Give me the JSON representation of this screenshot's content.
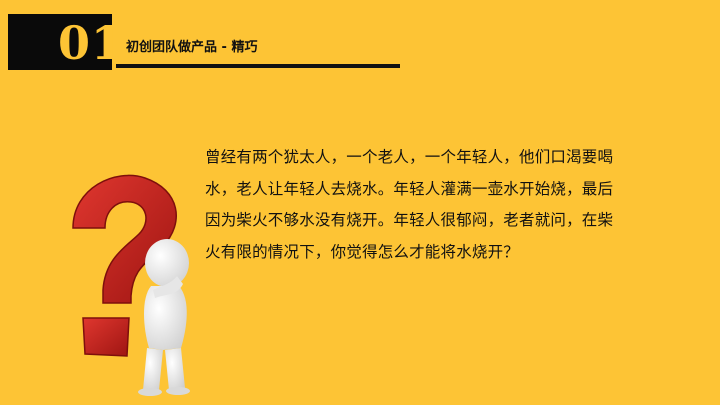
{
  "slide": {
    "section_number": "01",
    "title": "初创团队做产品 - 精巧",
    "body_lines": [
      "曾经有两个犹太人，一个老人，一个年轻人，他们口渴要喝",
      "水，老人让年轻人去烧水。年轻人灌满一壶水开始烧，最后",
      "因为柴火不够水没有烧开。年轻人很郁闷，老者就问，在柴",
      "火有限的情况下，你觉得怎么才能将水烧开？"
    ]
  },
  "colors": {
    "background": "#FDC435",
    "accent_dark": "#0a0a0a",
    "question_mark": "#C0221C",
    "figure": "#F2F2F2"
  },
  "icons": {
    "illustration": "thinking-figure-with-question-mark"
  }
}
